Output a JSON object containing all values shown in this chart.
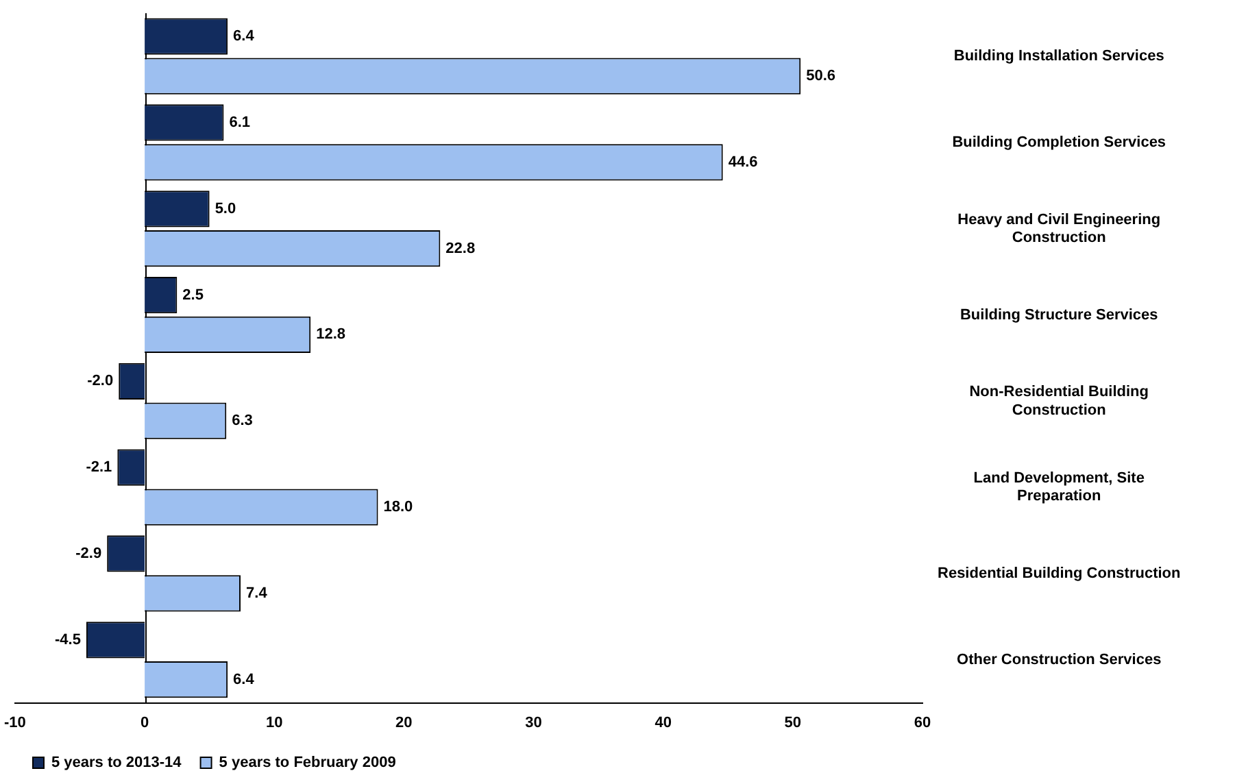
{
  "chart_data": {
    "type": "bar",
    "orientation": "horizontal",
    "categories": [
      "Building Installation Services",
      "Building Completion Services",
      "Heavy and Civil Engineering Construction",
      "Building Structure Services",
      "Non-Residential Building Construction",
      "Land Development, Site Preparation",
      "Residential Building Construction",
      "Other Construction Services"
    ],
    "series": [
      {
        "name": "5 years to 2013-14",
        "color": "#122c5e",
        "values": [
          6.4,
          6.1,
          5.0,
          2.5,
          -2.0,
          -2.1,
          -2.9,
          -4.5
        ],
        "value_labels": [
          "6.4",
          "6.1",
          "5.0",
          "2.5",
          "-2.0",
          "-2.1",
          "-2.9",
          "-4.5"
        ]
      },
      {
        "name": "5 years to February 2009",
        "color": "#9dbff0",
        "values": [
          50.6,
          44.6,
          22.8,
          12.8,
          6.3,
          18.0,
          7.4,
          6.4
        ],
        "value_labels": [
          "50.6",
          "44.6",
          "22.8",
          "12.8",
          "6.3",
          "18.0",
          "7.4",
          "6.4"
        ]
      }
    ],
    "xlim": [
      -10,
      60
    ],
    "xticks": [
      -10,
      0,
      10,
      20,
      30,
      40,
      50,
      60
    ],
    "legend": "bottom"
  }
}
